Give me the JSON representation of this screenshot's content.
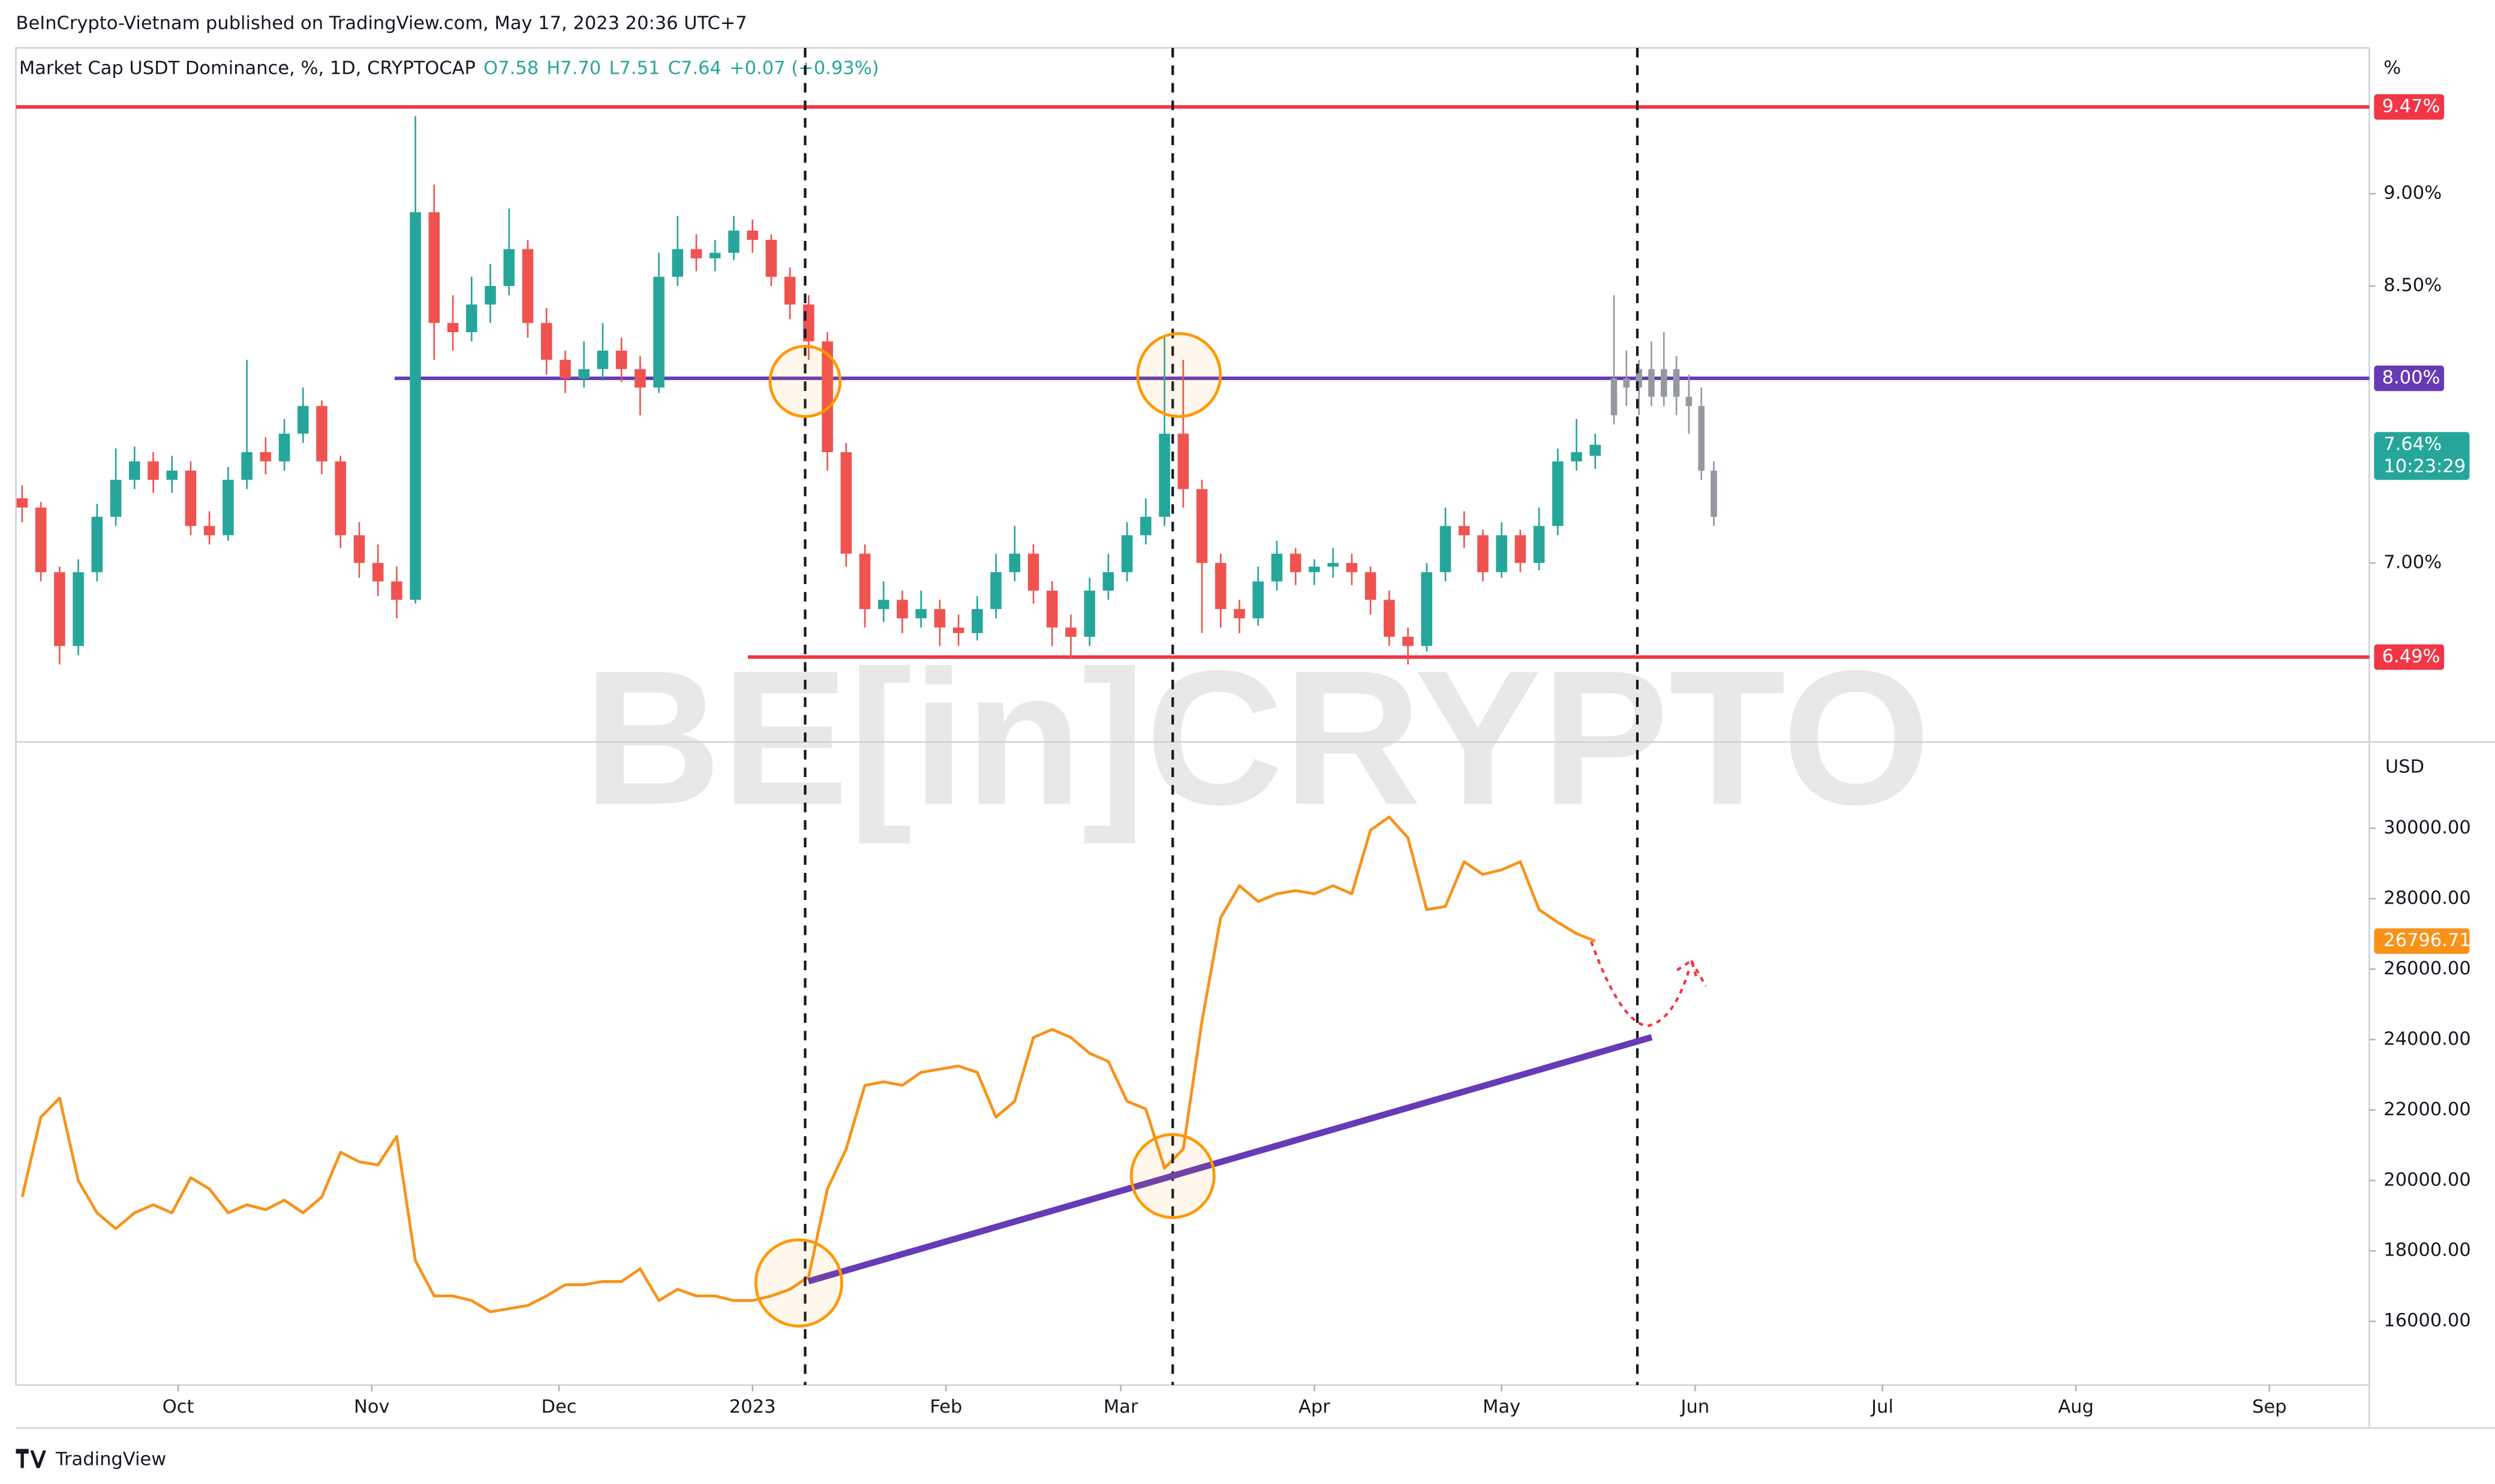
{
  "header": {
    "publisher": "BeInCrypto-Vietnam published on TradingView.com, May 17, 2023 20:36 UTC+7",
    "brand": "TradingView",
    "watermark": "BE[in]CRYPTO"
  },
  "chart_data": [
    {
      "type": "candlestick",
      "title": "Market Cap USDT Dominance, %, 1D, CRYPTOCAP",
      "legend_values": [
        "O7.58",
        "H7.70",
        "L7.51",
        "C7.64",
        "+0.07 (+0.93%)"
      ],
      "unit": "%",
      "up_color": "#26a69a",
      "down_color": "#ef5350",
      "x": [
        5,
        8,
        11,
        14,
        17,
        20,
        23,
        26,
        29,
        32,
        35,
        38,
        41,
        44,
        47,
        50,
        53,
        56,
        59,
        62,
        65,
        68,
        71,
        74,
        77,
        80,
        83,
        86,
        89,
        92,
        95,
        98,
        101,
        104,
        107,
        110,
        113,
        116,
        119,
        122,
        125,
        128,
        131,
        134,
        137,
        140,
        143,
        146,
        149,
        152,
        155,
        158,
        161,
        164,
        167,
        170,
        173,
        176,
        179,
        182,
        185,
        188,
        191,
        194,
        197,
        200,
        203,
        206,
        209,
        212,
        215,
        218,
        221,
        224,
        227,
        230,
        233,
        236,
        239,
        242,
        245,
        248,
        251,
        254,
        257
      ],
      "open": [
        7.35,
        7.3,
        6.95,
        6.55,
        6.95,
        7.25,
        7.45,
        7.55,
        7.45,
        7.5,
        7.2,
        7.15,
        7.45,
        7.6,
        7.55,
        7.7,
        7.85,
        7.55,
        7.15,
        7.0,
        6.9,
        6.8,
        8.9,
        8.3,
        8.25,
        8.4,
        8.5,
        8.7,
        8.3,
        8.1,
        8.0,
        8.05,
        8.15,
        8.05,
        7.95,
        8.55,
        8.7,
        8.65,
        8.68,
        8.8,
        8.75,
        8.55,
        8.4,
        8.2,
        7.6,
        7.05,
        6.75,
        6.8,
        6.7,
        6.75,
        6.65,
        6.62,
        6.75,
        6.95,
        7.05,
        6.85,
        6.65,
        6.6,
        6.85,
        6.95,
        7.15,
        7.25,
        7.7,
        7.4,
        7.0,
        6.75,
        6.7,
        6.9,
        7.05,
        6.95,
        6.98,
        7.0,
        6.95,
        6.8,
        6.6,
        6.55,
        6.95,
        7.2,
        7.15,
        6.95,
        7.15,
        7.0,
        7.2,
        7.55,
        7.58
      ],
      "high": [
        7.42,
        7.33,
        6.98,
        7.02,
        7.32,
        7.62,
        7.63,
        7.6,
        7.58,
        7.55,
        7.28,
        7.52,
        8.1,
        7.68,
        7.78,
        7.95,
        7.88,
        7.58,
        7.22,
        7.1,
        6.98,
        9.42,
        9.05,
        8.45,
        8.55,
        8.62,
        8.92,
        8.75,
        8.38,
        8.15,
        8.2,
        8.3,
        8.22,
        8.12,
        8.68,
        8.88,
        8.78,
        8.75,
        8.88,
        8.86,
        8.78,
        8.6,
        8.45,
        8.25,
        7.65,
        7.1,
        6.9,
        6.85,
        6.85,
        6.8,
        6.72,
        6.82,
        7.05,
        7.2,
        7.1,
        6.9,
        6.72,
        6.92,
        7.05,
        7.22,
        7.35,
        8.23,
        8.1,
        7.45,
        7.05,
        6.8,
        6.98,
        7.12,
        7.08,
        7.02,
        7.08,
        7.05,
        6.98,
        6.85,
        6.65,
        7.0,
        7.3,
        7.28,
        7.18,
        7.22,
        7.18,
        7.3,
        7.62,
        7.78,
        7.7
      ],
      "low": [
        7.22,
        6.9,
        6.45,
        6.5,
        6.9,
        7.2,
        7.4,
        7.38,
        7.38,
        7.15,
        7.1,
        7.12,
        7.4,
        7.48,
        7.5,
        7.65,
        7.48,
        7.08,
        6.92,
        6.82,
        6.7,
        6.78,
        8.1,
        8.15,
        8.2,
        8.3,
        8.45,
        8.22,
        8.02,
        7.92,
        7.95,
        8.0,
        7.98,
        7.8,
        7.92,
        8.5,
        8.58,
        8.58,
        8.64,
        8.68,
        8.5,
        8.32,
        8.1,
        7.5,
        6.98,
        6.65,
        6.68,
        6.62,
        6.65,
        6.55,
        6.55,
        6.58,
        6.7,
        6.9,
        6.78,
        6.55,
        6.48,
        6.55,
        6.8,
        6.9,
        7.1,
        7.2,
        7.3,
        6.62,
        6.65,
        6.62,
        6.66,
        6.85,
        6.88,
        6.88,
        6.92,
        6.88,
        6.72,
        6.55,
        6.45,
        6.52,
        6.9,
        7.08,
        6.9,
        6.92,
        6.95,
        6.96,
        7.15,
        7.5,
        7.51
      ],
      "close": [
        7.3,
        6.95,
        6.55,
        6.95,
        7.25,
        7.45,
        7.55,
        7.45,
        7.5,
        7.2,
        7.15,
        7.45,
        7.6,
        7.55,
        7.7,
        7.85,
        7.55,
        7.15,
        7.0,
        6.9,
        6.8,
        8.9,
        8.3,
        8.25,
        8.4,
        8.5,
        8.7,
        8.3,
        8.1,
        8.0,
        8.05,
        8.15,
        8.05,
        7.95,
        8.55,
        8.7,
        8.65,
        8.68,
        8.8,
        8.75,
        8.55,
        8.4,
        8.2,
        7.6,
        7.05,
        6.75,
        6.8,
        6.7,
        6.75,
        6.65,
        6.62,
        6.75,
        6.95,
        7.05,
        6.85,
        6.65,
        6.6,
        6.85,
        6.95,
        7.15,
        7.25,
        7.7,
        7.4,
        7.0,
        6.75,
        6.7,
        6.9,
        7.05,
        6.95,
        6.98,
        7.0,
        6.95,
        6.8,
        6.6,
        6.55,
        6.95,
        7.2,
        7.15,
        6.95,
        7.15,
        7.0,
        7.2,
        7.55,
        7.6,
        7.64
      ],
      "projection": {
        "color": "#9598a1",
        "x": [
          260,
          262,
          264,
          266,
          268,
          270,
          272,
          274,
          276
        ],
        "open": [
          7.8,
          8.0,
          7.95,
          8.05,
          7.9,
          8.05,
          7.9,
          7.85,
          7.5
        ],
        "high": [
          8.45,
          8.15,
          8.1,
          8.2,
          8.25,
          8.12,
          8.02,
          7.95,
          7.55
        ],
        "low": [
          7.75,
          7.85,
          7.8,
          7.85,
          7.85,
          7.8,
          7.7,
          7.45,
          7.2
        ],
        "close": [
          8.0,
          7.95,
          8.05,
          7.9,
          8.05,
          7.9,
          7.85,
          7.5,
          7.25
        ]
      },
      "levels": [
        {
          "value": 9.47,
          "label": "9.47%",
          "color": "#f23645"
        },
        {
          "value": 8.0,
          "label": "8.00%",
          "color": "#673ab7"
        },
        {
          "value": 6.49,
          "label": "6.49%",
          "color": "#f23645"
        }
      ],
      "price_label": {
        "value": 7.64,
        "label": "7.64%"
      },
      "countdown": "10:23:29",
      "xlim": [
        4,
        381
      ],
      "ylim": [
        6.03,
        9.79
      ],
      "yticks": [
        {
          "value": 7,
          "label": "7.00%"
        },
        {
          "value": 8.5,
          "label": "8.50%"
        },
        {
          "value": 9,
          "label": "9.00%"
        }
      ]
    },
    {
      "type": "line",
      "unit": "USD",
      "color": "#f7931a",
      "x": [
        5,
        8,
        11,
        14,
        17,
        20,
        23,
        26,
        29,
        32,
        35,
        38,
        41,
        44,
        47,
        50,
        53,
        56,
        59,
        62,
        65,
        68,
        71,
        74,
        77,
        80,
        83,
        86,
        89,
        92,
        95,
        98,
        101,
        104,
        107,
        110,
        113,
        116,
        119,
        122,
        125,
        128,
        131,
        134,
        137,
        140,
        143,
        146,
        149,
        152,
        155,
        158,
        161,
        164,
        167,
        170,
        173,
        176,
        179,
        182,
        185,
        188,
        191,
        194,
        197,
        200,
        203,
        206,
        209,
        212,
        215,
        218,
        221,
        224,
        227,
        230,
        233,
        236,
        239,
        242,
        245,
        248,
        251,
        254,
        257
      ],
      "values": [
        19530,
        21800,
        22340,
        19990,
        19080,
        18630,
        19080,
        19310,
        19080,
        20080,
        19760,
        19080,
        19310,
        19170,
        19440,
        19080,
        19530,
        20800,
        20530,
        20440,
        21250,
        17720,
        16720,
        16720,
        16590,
        16270,
        16360,
        16450,
        16720,
        17040,
        17040,
        17130,
        17130,
        17490,
        16590,
        16910,
        16720,
        16720,
        16590,
        16590,
        16720,
        16910,
        17270,
        19760,
        20890,
        22700,
        22800,
        22700,
        23070,
        23160,
        23250,
        23070,
        21800,
        22250,
        24060,
        24290,
        24060,
        23610,
        23380,
        22250,
        22030,
        20350,
        20890,
        24520,
        27460,
        28370,
        27920,
        28140,
        28230,
        28140,
        28370,
        28140,
        29950,
        30320,
        29730,
        27690,
        27780,
        29050,
        28690,
        28820,
        29050,
        27690,
        27330,
        27010,
        26796.71
      ],
      "price_label": {
        "value": 26796.71,
        "label": "26796.71"
      },
      "xlim": [
        4,
        381
      ],
      "ylim": [
        14190,
        32450
      ],
      "yticks": [
        {
          "value": 16000,
          "label": "16000.00"
        },
        {
          "value": 18000,
          "label": "18000.00"
        },
        {
          "value": 20000,
          "label": "20000.00"
        },
        {
          "value": 22000,
          "label": "22000.00"
        },
        {
          "value": 24000,
          "label": "24000.00"
        },
        {
          "value": 26000,
          "label": "26000.00"
        },
        {
          "value": 28000,
          "label": "28000.00"
        },
        {
          "value": 30000,
          "label": "30000.00"
        }
      ],
      "xticks": [
        {
          "value": 30,
          "label": "Oct"
        },
        {
          "value": 61,
          "label": "Nov"
        },
        {
          "value": 91,
          "label": "Dec"
        },
        {
          "value": 122,
          "label": "2023"
        },
        {
          "value": 153,
          "label": "Feb"
        },
        {
          "value": 181,
          "label": "Mar"
        },
        {
          "value": 212,
          "label": "Apr"
        },
        {
          "value": 242,
          "label": "May"
        },
        {
          "value": 273,
          "label": "Jun"
        },
        {
          "value": 303,
          "label": "Jul"
        },
        {
          "value": 334,
          "label": "Aug"
        },
        {
          "value": 365,
          "label": "Sep"
        }
      ]
    }
  ]
}
